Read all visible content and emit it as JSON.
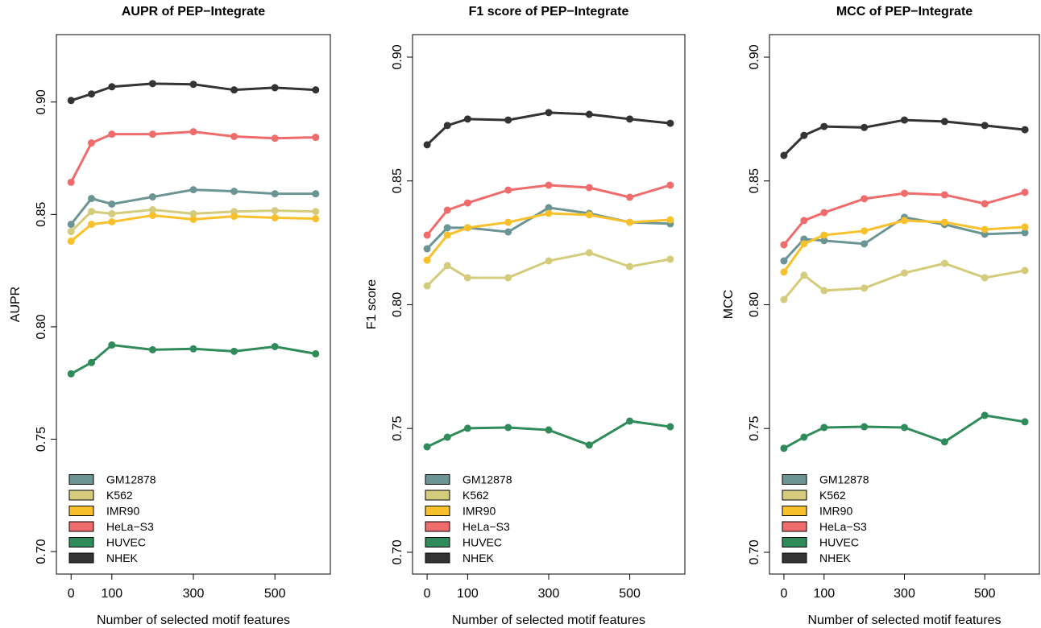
{
  "chart_data": [
    {
      "type": "line",
      "title": "AUPR of PEP−Integrate",
      "x_label": "Number of selected motif features",
      "y_label": "AUPR",
      "x": [
        0,
        50,
        100,
        200,
        300,
        400,
        500,
        600
      ],
      "xlim": [
        -36,
        636
      ],
      "xticks": [
        0,
        100,
        300,
        500
      ],
      "ylim": [
        0.69,
        0.93
      ],
      "yticks": [
        {
          "value": 0.7,
          "label": "0.70"
        },
        0.75,
        {
          "value": 0.8,
          "label": "0.80"
        },
        0.85,
        {
          "value": 0.9,
          "label": "0.90"
        }
      ],
      "legend": "bottom-left",
      "series": [
        {
          "name": "GM12878",
          "color": "#6b9594",
          "values": [
            0.8456,
            0.8571,
            0.8546,
            0.8578,
            0.861,
            0.8603,
            0.8592,
            0.8592
          ]
        },
        {
          "name": "K562",
          "color": "#d4cb7c",
          "values": [
            0.8424,
            0.8513,
            0.8503,
            0.8521,
            0.8503,
            0.8513,
            0.8517,
            0.8513
          ]
        },
        {
          "name": "IMR90",
          "color": "#f8c12c",
          "values": [
            0.8381,
            0.8456,
            0.8467,
            0.8496,
            0.8478,
            0.8492,
            0.8485,
            0.8481
          ]
        },
        {
          "name": "HeLa−S3",
          "color": "#f06b6b",
          "values": [
            0.8643,
            0.8818,
            0.8857,
            0.8857,
            0.8868,
            0.8847,
            0.8839,
            0.8843
          ]
        },
        {
          "name": "HUVEC",
          "color": "#2f8b5a",
          "values": [
            0.7791,
            0.7841,
            0.7919,
            0.7898,
            0.7902,
            0.7891,
            0.7912,
            0.788
          ]
        },
        {
          "name": "NHEK",
          "color": "#333333",
          "values": [
            0.9007,
            0.9036,
            0.9068,
            0.9082,
            0.9079,
            0.9054,
            0.9064,
            0.9054
          ]
        }
      ]
    },
    {
      "type": "line",
      "title": "F1 score of PEP−Integrate",
      "x_label": "Number of selected motif features",
      "y_label": "F1 score",
      "x": [
        0,
        50,
        100,
        200,
        300,
        400,
        500,
        600
      ],
      "xlim": [
        -36,
        636
      ],
      "xticks": [
        0,
        100,
        300,
        500
      ],
      "ylim": [
        0.6912,
        0.9091
      ],
      "yticks": [
        {
          "value": 0.7,
          "label": "0.70"
        },
        0.75,
        {
          "value": 0.8,
          "label": "0.80"
        },
        0.85,
        {
          "value": 0.9,
          "label": "0.90"
        }
      ],
      "legend": "bottom-left",
      "series": [
        {
          "name": "GM12878",
          "color": "#6b9594",
          "values": [
            0.8226,
            0.8311,
            0.8311,
            0.8294,
            0.8392,
            0.8369,
            0.8333,
            0.8327
          ]
        },
        {
          "name": "K562",
          "color": "#d4cb7c",
          "values": [
            0.8076,
            0.8158,
            0.8109,
            0.8109,
            0.8177,
            0.821,
            0.8154,
            0.8184
          ]
        },
        {
          "name": "IMR90",
          "color": "#f8c12c",
          "values": [
            0.818,
            0.8281,
            0.8311,
            0.8333,
            0.8369,
            0.8363,
            0.8333,
            0.8343
          ]
        },
        {
          "name": "HeLa−S3",
          "color": "#f06b6b",
          "values": [
            0.8281,
            0.8382,
            0.8411,
            0.8463,
            0.8483,
            0.8473,
            0.8434,
            0.8483
          ]
        },
        {
          "name": "HUVEC",
          "color": "#2f8b5a",
          "values": [
            0.7426,
            0.7465,
            0.7501,
            0.7504,
            0.7494,
            0.7433,
            0.753,
            0.7507
          ]
        },
        {
          "name": "NHEK",
          "color": "#333333",
          "values": [
            0.8646,
            0.8724,
            0.875,
            0.8746,
            0.8776,
            0.8769,
            0.875,
            0.8733
          ]
        }
      ]
    },
    {
      "type": "line",
      "title": "MCC of PEP−Integrate",
      "x_label": "Number of selected motif features",
      "y_label": "MCC",
      "x": [
        0,
        50,
        100,
        200,
        300,
        400,
        500,
        600
      ],
      "xlim": [
        -36,
        636
      ],
      "xticks": [
        0,
        100,
        300,
        500
      ],
      "ylim": [
        0.6912,
        0.9091
      ],
      "yticks": [
        {
          "value": 0.7,
          "label": "0.70"
        },
        0.75,
        {
          "value": 0.8,
          "label": "0.80"
        },
        0.85,
        {
          "value": 0.9,
          "label": "0.90"
        }
      ],
      "legend": "bottom-left",
      "series": [
        {
          "name": "GM12878",
          "color": "#6b9594",
          "values": [
            0.8177,
            0.8265,
            0.8259,
            0.8246,
            0.8353,
            0.8324,
            0.8285,
            0.8291
          ]
        },
        {
          "name": "K562",
          "color": "#d4cb7c",
          "values": [
            0.8021,
            0.8119,
            0.8057,
            0.8067,
            0.8128,
            0.8167,
            0.8109,
            0.8138
          ]
        },
        {
          "name": "IMR90",
          "color": "#f8c12c",
          "values": [
            0.8132,
            0.8246,
            0.8281,
            0.8298,
            0.834,
            0.8333,
            0.8304,
            0.8314
          ]
        },
        {
          "name": "HeLa−S3",
          "color": "#f06b6b",
          "values": [
            0.8242,
            0.834,
            0.8372,
            0.8428,
            0.845,
            0.8444,
            0.8408,
            0.8454
          ]
        },
        {
          "name": "HUVEC",
          "color": "#2f8b5a",
          "values": [
            0.742,
            0.7465,
            0.7504,
            0.7507,
            0.7504,
            0.7446,
            0.7553,
            0.7527
          ]
        },
        {
          "name": "NHEK",
          "color": "#333333",
          "values": [
            0.8603,
            0.8684,
            0.872,
            0.8716,
            0.8746,
            0.874,
            0.8724,
            0.8707
          ]
        }
      ]
    }
  ]
}
